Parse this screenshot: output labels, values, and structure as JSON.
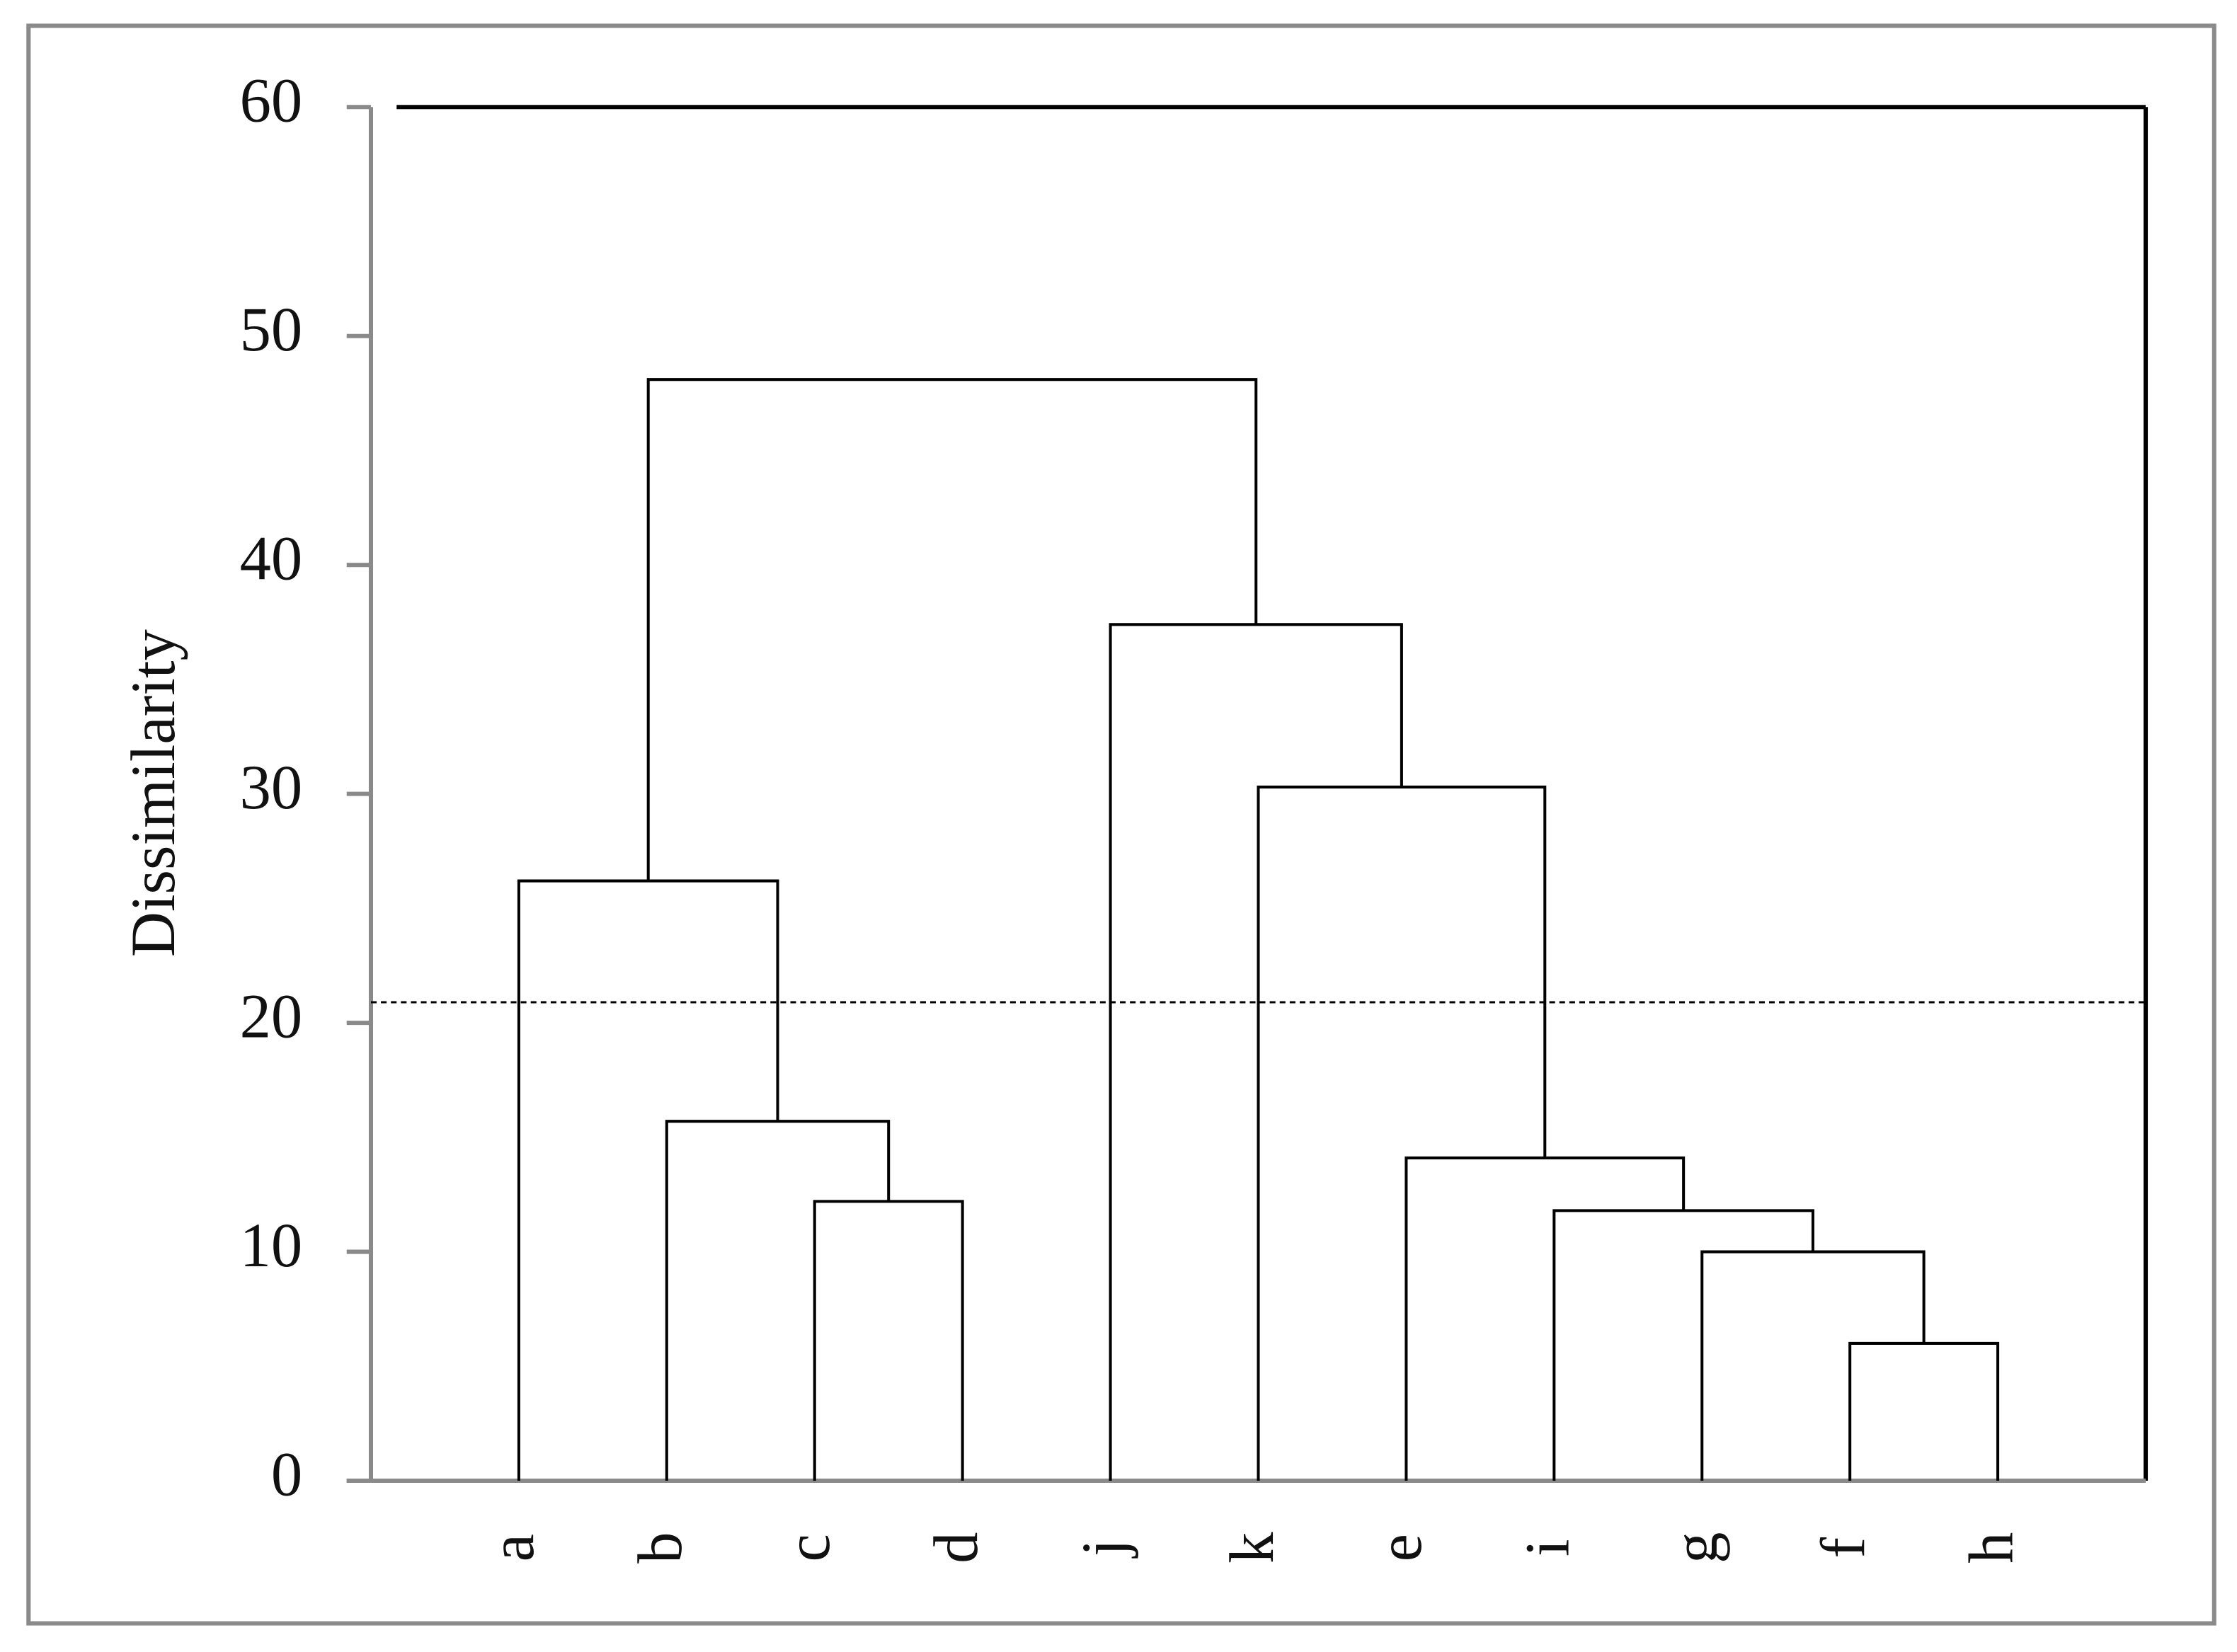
{
  "chart_data": {
    "type": "dendrogram",
    "ylabel": "Dissimilarity",
    "leaves": [
      "a",
      "b",
      "c",
      "d",
      "j",
      "k",
      "e",
      "i",
      "g",
      "f",
      "h"
    ],
    "merges": [
      {
        "children": [
          9,
          10
        ],
        "height": 6.0
      },
      {
        "children": [
          8,
          11
        ],
        "height": 10.0
      },
      {
        "children": [
          7,
          12
        ],
        "height": 11.8
      },
      {
        "children": [
          2,
          3
        ],
        "height": 12.2
      },
      {
        "children": [
          6,
          13
        ],
        "height": 14.1
      },
      {
        "children": [
          1,
          14
        ],
        "height": 15.7
      },
      {
        "children": [
          0,
          16
        ],
        "height": 26.2
      },
      {
        "children": [
          5,
          15
        ],
        "height": 30.3
      },
      {
        "children": [
          4,
          18
        ],
        "height": 37.4
      },
      {
        "children": [
          17,
          19
        ],
        "height": 48.1
      }
    ],
    "threshold": 20.9,
    "ylim": [
      0,
      60
    ],
    "yticks": [
      0,
      10,
      20,
      30,
      40,
      50,
      60
    ],
    "color": "#000000"
  }
}
